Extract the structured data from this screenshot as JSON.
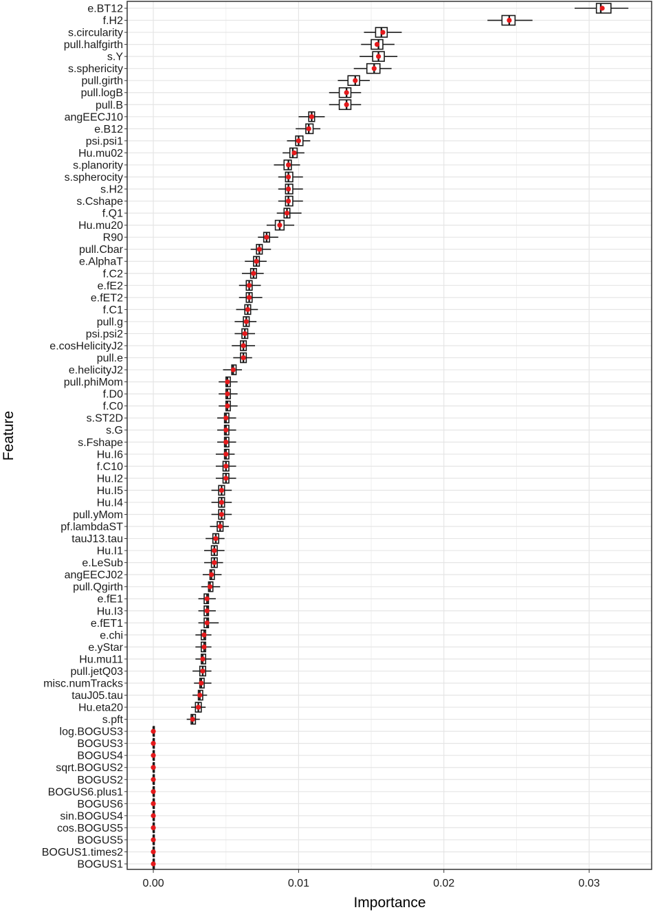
{
  "chart_data": {
    "type": "boxplot",
    "xlabel": "Importance",
    "ylabel": "Feature",
    "xlim": [
      -0.0018,
      0.0343
    ],
    "x_ticks": [
      0.0,
      0.01,
      0.02,
      0.03
    ],
    "x_tick_labels": [
      "0.00",
      "0.01",
      "0.02",
      "0.03"
    ],
    "grid": true,
    "colors": {
      "box": "#1a1a1a",
      "mean_point": "#e41a1c",
      "grid": "#e5e5e5",
      "panel_border": "#333333"
    },
    "features": [
      {
        "name": "e.BT12",
        "min": 0.029,
        "q1": 0.0305,
        "median": 0.0308,
        "q3": 0.0315,
        "max": 0.0327,
        "mean": 0.0309
      },
      {
        "name": "f.H2",
        "min": 0.023,
        "q1": 0.024,
        "median": 0.0245,
        "q3": 0.0249,
        "max": 0.0261,
        "mean": 0.0245
      },
      {
        "name": "s.circularity",
        "min": 0.0145,
        "q1": 0.0153,
        "median": 0.0157,
        "q3": 0.0161,
        "max": 0.0171,
        "mean": 0.0158
      },
      {
        "name": "pull.halfgirth",
        "min": 0.0143,
        "q1": 0.015,
        "median": 0.0155,
        "q3": 0.0158,
        "max": 0.0166,
        "mean": 0.0154
      },
      {
        "name": "s.Y",
        "min": 0.0142,
        "q1": 0.0151,
        "median": 0.0155,
        "q3": 0.0159,
        "max": 0.0168,
        "mean": 0.0155
      },
      {
        "name": "s.sphericity",
        "min": 0.0138,
        "q1": 0.0147,
        "median": 0.0152,
        "q3": 0.0156,
        "max": 0.0164,
        "mean": 0.0152
      },
      {
        "name": "pull.girth",
        "min": 0.0127,
        "q1": 0.0134,
        "median": 0.0139,
        "q3": 0.0142,
        "max": 0.0149,
        "mean": 0.0139
      },
      {
        "name": "pull.logB",
        "min": 0.0121,
        "q1": 0.0128,
        "median": 0.0133,
        "q3": 0.0136,
        "max": 0.0143,
        "mean": 0.0133
      },
      {
        "name": "pull.B",
        "min": 0.0121,
        "q1": 0.0128,
        "median": 0.0133,
        "q3": 0.0136,
        "max": 0.0143,
        "mean": 0.0133
      },
      {
        "name": "angEECJ10",
        "min": 0.01,
        "q1": 0.0107,
        "median": 0.0109,
        "q3": 0.0111,
        "max": 0.0118,
        "mean": 0.0109
      },
      {
        "name": "e.B12",
        "min": 0.0098,
        "q1": 0.0105,
        "median": 0.0107,
        "q3": 0.011,
        "max": 0.0115,
        "mean": 0.0107
      },
      {
        "name": "psi.psi1",
        "min": 0.0092,
        "q1": 0.0098,
        "median": 0.01,
        "q3": 0.0103,
        "max": 0.0108,
        "mean": 0.01
      },
      {
        "name": "Hu.mu02",
        "min": 0.0089,
        "q1": 0.0094,
        "median": 0.0096,
        "q3": 0.0099,
        "max": 0.0104,
        "mean": 0.0097
      },
      {
        "name": "s.planority",
        "min": 0.0083,
        "q1": 0.009,
        "median": 0.0093,
        "q3": 0.0095,
        "max": 0.0101,
        "mean": 0.0093
      },
      {
        "name": "s.spherocity",
        "min": 0.0086,
        "q1": 0.0091,
        "median": 0.0093,
        "q3": 0.0096,
        "max": 0.0103,
        "mean": 0.0093
      },
      {
        "name": "s.H2",
        "min": 0.0086,
        "q1": 0.0091,
        "median": 0.0093,
        "q3": 0.0096,
        "max": 0.0103,
        "mean": 0.0093
      },
      {
        "name": "s.Cshape",
        "min": 0.0086,
        "q1": 0.0091,
        "median": 0.0093,
        "q3": 0.0096,
        "max": 0.0103,
        "mean": 0.0093
      },
      {
        "name": "f.Q1",
        "min": 0.0085,
        "q1": 0.009,
        "median": 0.0092,
        "q3": 0.0094,
        "max": 0.0102,
        "mean": 0.0092
      },
      {
        "name": "Hu.mu20",
        "min": 0.0078,
        "q1": 0.0084,
        "median": 0.0087,
        "q3": 0.009,
        "max": 0.0097,
        "mean": 0.0087
      },
      {
        "name": "R90",
        "min": 0.0072,
        "q1": 0.0076,
        "median": 0.0078,
        "q3": 0.008,
        "max": 0.0086,
        "mean": 0.0078
      },
      {
        "name": "pull.Cbar",
        "min": 0.0067,
        "q1": 0.0071,
        "median": 0.0073,
        "q3": 0.0075,
        "max": 0.0081,
        "mean": 0.0073
      },
      {
        "name": "e.AlphaT",
        "min": 0.0063,
        "q1": 0.0069,
        "median": 0.0071,
        "q3": 0.0073,
        "max": 0.0078,
        "mean": 0.0071
      },
      {
        "name": "f.C2",
        "min": 0.0061,
        "q1": 0.0067,
        "median": 0.0069,
        "q3": 0.0071,
        "max": 0.0076,
        "mean": 0.0069
      },
      {
        "name": "e.fE2",
        "min": 0.0059,
        "q1": 0.0064,
        "median": 0.0066,
        "q3": 0.0068,
        "max": 0.0074,
        "mean": 0.0066
      },
      {
        "name": "e.fET2",
        "min": 0.0059,
        "q1": 0.0064,
        "median": 0.0066,
        "q3": 0.0068,
        "max": 0.0075,
        "mean": 0.0066
      },
      {
        "name": "f.C1",
        "min": 0.0057,
        "q1": 0.0063,
        "median": 0.0065,
        "q3": 0.0067,
        "max": 0.0072,
        "mean": 0.0065
      },
      {
        "name": "pull.g",
        "min": 0.0056,
        "q1": 0.0062,
        "median": 0.0064,
        "q3": 0.0066,
        "max": 0.0071,
        "mean": 0.0064
      },
      {
        "name": "psi.psi2",
        "min": 0.0056,
        "q1": 0.0061,
        "median": 0.0063,
        "q3": 0.0065,
        "max": 0.007,
        "mean": 0.0063
      },
      {
        "name": "e.cosHelicityJ2",
        "min": 0.0054,
        "q1": 0.006,
        "median": 0.0062,
        "q3": 0.0064,
        "max": 0.007,
        "mean": 0.0062
      },
      {
        "name": "pull.e",
        "min": 0.0055,
        "q1": 0.006,
        "median": 0.0062,
        "q3": 0.0064,
        "max": 0.0068,
        "mean": 0.0062
      },
      {
        "name": "e.helicityJ2",
        "min": 0.0048,
        "q1": 0.0054,
        "median": 0.0055,
        "q3": 0.0057,
        "max": 0.0061,
        "mean": 0.0055
      },
      {
        "name": "pull.phiMom",
        "min": 0.0045,
        "q1": 0.005,
        "median": 0.0051,
        "q3": 0.0053,
        "max": 0.0058,
        "mean": 0.0051
      },
      {
        "name": "f.D0",
        "min": 0.0045,
        "q1": 0.005,
        "median": 0.0051,
        "q3": 0.0053,
        "max": 0.0058,
        "mean": 0.0051
      },
      {
        "name": "f.C0",
        "min": 0.0045,
        "q1": 0.005,
        "median": 0.0051,
        "q3": 0.0053,
        "max": 0.0058,
        "mean": 0.0051
      },
      {
        "name": "s.ST2D",
        "min": 0.0044,
        "q1": 0.0049,
        "median": 0.005,
        "q3": 0.0052,
        "max": 0.0057,
        "mean": 0.005
      },
      {
        "name": "s.G",
        "min": 0.0044,
        "q1": 0.0049,
        "median": 0.005,
        "q3": 0.0052,
        "max": 0.0057,
        "mean": 0.005
      },
      {
        "name": "s.Fshape",
        "min": 0.0044,
        "q1": 0.0049,
        "median": 0.005,
        "q3": 0.0052,
        "max": 0.0057,
        "mean": 0.005
      },
      {
        "name": "Hu.I6",
        "min": 0.0043,
        "q1": 0.0049,
        "median": 0.005,
        "q3": 0.0052,
        "max": 0.0056,
        "mean": 0.005
      },
      {
        "name": "f.C10",
        "min": 0.0043,
        "q1": 0.0048,
        "median": 0.005,
        "q3": 0.0052,
        "max": 0.0057,
        "mean": 0.005
      },
      {
        "name": "Hu.I2",
        "min": 0.0043,
        "q1": 0.0048,
        "median": 0.005,
        "q3": 0.0052,
        "max": 0.0057,
        "mean": 0.005
      },
      {
        "name": "Hu.I5",
        "min": 0.004,
        "q1": 0.0045,
        "median": 0.0047,
        "q3": 0.0049,
        "max": 0.0054,
        "mean": 0.0047
      },
      {
        "name": "Hu.I4",
        "min": 0.004,
        "q1": 0.0045,
        "median": 0.0047,
        "q3": 0.0049,
        "max": 0.0054,
        "mean": 0.0047
      },
      {
        "name": "pull.yMom",
        "min": 0.004,
        "q1": 0.0045,
        "median": 0.0047,
        "q3": 0.0049,
        "max": 0.0054,
        "mean": 0.0047
      },
      {
        "name": "pf.lambdaST",
        "min": 0.0039,
        "q1": 0.0044,
        "median": 0.0046,
        "q3": 0.0048,
        "max": 0.0052,
        "mean": 0.0046
      },
      {
        "name": "tauJ13.tau",
        "min": 0.0036,
        "q1": 0.0041,
        "median": 0.0043,
        "q3": 0.0045,
        "max": 0.0049,
        "mean": 0.0043
      },
      {
        "name": "Hu.I1",
        "min": 0.0035,
        "q1": 0.004,
        "median": 0.0042,
        "q3": 0.0044,
        "max": 0.0049,
        "mean": 0.0042
      },
      {
        "name": "e.LeSub",
        "min": 0.0035,
        "q1": 0.004,
        "median": 0.0042,
        "q3": 0.0044,
        "max": 0.0048,
        "mean": 0.0042
      },
      {
        "name": "angEECJ02",
        "min": 0.0034,
        "q1": 0.0039,
        "median": 0.004,
        "q3": 0.0042,
        "max": 0.0047,
        "mean": 0.004
      },
      {
        "name": "pull.Qgirth",
        "min": 0.0033,
        "q1": 0.0038,
        "median": 0.0039,
        "q3": 0.0041,
        "max": 0.0046,
        "mean": 0.0039
      },
      {
        "name": "e.fE1",
        "min": 0.0031,
        "q1": 0.0035,
        "median": 0.0037,
        "q3": 0.0038,
        "max": 0.0043,
        "mean": 0.0037
      },
      {
        "name": "Hu.I3",
        "min": 0.0031,
        "q1": 0.0035,
        "median": 0.0037,
        "q3": 0.0038,
        "max": 0.0043,
        "mean": 0.0037
      },
      {
        "name": "e.fET1",
        "min": 0.0031,
        "q1": 0.0035,
        "median": 0.0037,
        "q3": 0.0038,
        "max": 0.0045,
        "mean": 0.0037
      },
      {
        "name": "e.chi",
        "min": 0.0029,
        "q1": 0.0033,
        "median": 0.0035,
        "q3": 0.0036,
        "max": 0.004,
        "mean": 0.0035
      },
      {
        "name": "e.yStar",
        "min": 0.0029,
        "q1": 0.0033,
        "median": 0.0035,
        "q3": 0.0036,
        "max": 0.004,
        "mean": 0.0035
      },
      {
        "name": "Hu.mu11",
        "min": 0.0029,
        "q1": 0.0033,
        "median": 0.0034,
        "q3": 0.0036,
        "max": 0.004,
        "mean": 0.0034
      },
      {
        "name": "pull.jetQ03",
        "min": 0.0027,
        "q1": 0.0032,
        "median": 0.0034,
        "q3": 0.0036,
        "max": 0.004,
        "mean": 0.0034
      },
      {
        "name": "misc.numTracks",
        "min": 0.0028,
        "q1": 0.0032,
        "median": 0.0033,
        "q3": 0.0035,
        "max": 0.004,
        "mean": 0.0033
      },
      {
        "name": "tauJ05.tau",
        "min": 0.0027,
        "q1": 0.0031,
        "median": 0.0032,
        "q3": 0.0034,
        "max": 0.0037,
        "mean": 0.0032
      },
      {
        "name": "Hu.eta20",
        "min": 0.0026,
        "q1": 0.0029,
        "median": 0.0031,
        "q3": 0.0033,
        "max": 0.0036,
        "mean": 0.0031
      },
      {
        "name": "s.pft",
        "min": 0.0023,
        "q1": 0.0026,
        "median": 0.0027,
        "q3": 0.0029,
        "max": 0.0032,
        "mean": 0.0027
      },
      {
        "name": "log.BOGUS3",
        "min": 0.0,
        "q1": 0.0,
        "median": 0.0,
        "q3": 0.0,
        "max": 0.0,
        "mean": 0.0
      },
      {
        "name": "BOGUS3",
        "min": 0.0,
        "q1": 0.0,
        "median": 0.0,
        "q3": 0.0,
        "max": 0.0,
        "mean": 0.0
      },
      {
        "name": "BOGUS4",
        "min": 0.0,
        "q1": 0.0,
        "median": 0.0,
        "q3": 0.0,
        "max": 0.0,
        "mean": 0.0
      },
      {
        "name": "sqrt.BOGUS2",
        "min": 0.0,
        "q1": 0.0,
        "median": 0.0,
        "q3": 0.0,
        "max": 0.0,
        "mean": 0.0
      },
      {
        "name": "BOGUS2",
        "min": 0.0,
        "q1": 0.0,
        "median": 0.0,
        "q3": 0.0,
        "max": 0.0,
        "mean": 0.0
      },
      {
        "name": "BOGUS6.plus1",
        "min": 0.0,
        "q1": 0.0,
        "median": 0.0,
        "q3": 0.0,
        "max": 0.0,
        "mean": 0.0
      },
      {
        "name": "BOGUS6",
        "min": 0.0,
        "q1": 0.0,
        "median": 0.0,
        "q3": 0.0,
        "max": 0.0,
        "mean": 0.0
      },
      {
        "name": "sin.BOGUS4",
        "min": 0.0,
        "q1": 0.0,
        "median": 0.0,
        "q3": 0.0,
        "max": 0.0,
        "mean": 0.0
      },
      {
        "name": "cos.BOGUS5",
        "min": 0.0,
        "q1": 0.0,
        "median": 0.0,
        "q3": 0.0,
        "max": 0.0,
        "mean": 0.0
      },
      {
        "name": "BOGUS5",
        "min": 0.0,
        "q1": 0.0,
        "median": 0.0,
        "q3": 0.0,
        "max": 0.0,
        "mean": 0.0
      },
      {
        "name": "BOGUS1.times2",
        "min": 0.0,
        "q1": 0.0,
        "median": 0.0,
        "q3": 0.0,
        "max": 0.0,
        "mean": 0.0
      },
      {
        "name": "BOGUS1",
        "min": 0.0,
        "q1": 0.0,
        "median": 0.0,
        "q3": 0.0,
        "max": 0.0,
        "mean": 0.0
      }
    ]
  }
}
